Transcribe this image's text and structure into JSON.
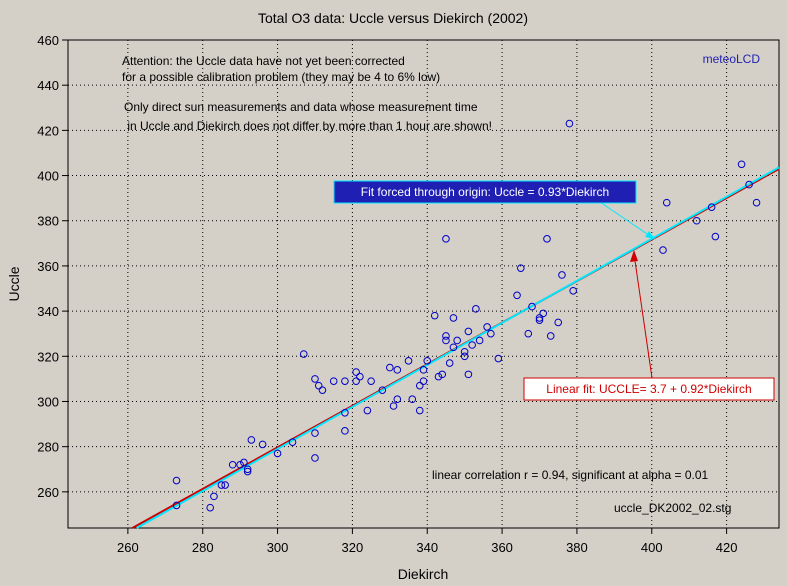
{
  "chart_data": {
    "type": "scatter",
    "title": "Total O3 data: Uccle versus Diekirch (2002)",
    "xlabel": "Diekirch",
    "ylabel": "Uccle",
    "xlim": [
      244,
      434
    ],
    "ylim": [
      244,
      460
    ],
    "xticks": [
      260,
      280,
      300,
      320,
      340,
      360,
      380,
      400,
      420
    ],
    "yticks": [
      260,
      280,
      300,
      320,
      340,
      360,
      380,
      400,
      420,
      440,
      460
    ],
    "grid": true,
    "marker_color": "#0000c8",
    "series": [
      {
        "points": [
          [
            273,
            265
          ],
          [
            273,
            254
          ],
          [
            282,
            253
          ],
          [
            283,
            258
          ],
          [
            285,
            263
          ],
          [
            286,
            263
          ],
          [
            288,
            272
          ],
          [
            290,
            272
          ],
          [
            291,
            273
          ],
          [
            292,
            269
          ],
          [
            292,
            270
          ],
          [
            293,
            283
          ],
          [
            296,
            281
          ],
          [
            300,
            277
          ],
          [
            304,
            282
          ],
          [
            307,
            321
          ],
          [
            310,
            275
          ],
          [
            310,
            286
          ],
          [
            310,
            310
          ],
          [
            311,
            307
          ],
          [
            312,
            305
          ],
          [
            315,
            309
          ],
          [
            318,
            309
          ],
          [
            318,
            295
          ],
          [
            318,
            287
          ],
          [
            321,
            313
          ],
          [
            321,
            309
          ],
          [
            322,
            311
          ],
          [
            324,
            296
          ],
          [
            325,
            309
          ],
          [
            328,
            305
          ],
          [
            330,
            315
          ],
          [
            331,
            298
          ],
          [
            332,
            301
          ],
          [
            332,
            314
          ],
          [
            335,
            318
          ],
          [
            336,
            301
          ],
          [
            338,
            296
          ],
          [
            338,
            307
          ],
          [
            339,
            309
          ],
          [
            339,
            314
          ],
          [
            340,
            318
          ],
          [
            342,
            338
          ],
          [
            343,
            311
          ],
          [
            344,
            312
          ],
          [
            345,
            327
          ],
          [
            345,
            372
          ],
          [
            345,
            329
          ],
          [
            346,
            317
          ],
          [
            347,
            337
          ],
          [
            347,
            324
          ],
          [
            348,
            327
          ],
          [
            350,
            320
          ],
          [
            350,
            322
          ],
          [
            351,
            312
          ],
          [
            351,
            331
          ],
          [
            352,
            325
          ],
          [
            353,
            341
          ],
          [
            354,
            327
          ],
          [
            356,
            333
          ],
          [
            357,
            330
          ],
          [
            359,
            319
          ],
          [
            364,
            347
          ],
          [
            365,
            359
          ],
          [
            367,
            330
          ],
          [
            368,
            342
          ],
          [
            370,
            336
          ],
          [
            370,
            337
          ],
          [
            371,
            339
          ],
          [
            372,
            372
          ],
          [
            373,
            329
          ],
          [
            375,
            335
          ],
          [
            376,
            356
          ],
          [
            378,
            423
          ],
          [
            379,
            349
          ],
          [
            403,
            367
          ],
          [
            404,
            388
          ],
          [
            412,
            380
          ],
          [
            416,
            386
          ],
          [
            417,
            373
          ],
          [
            424,
            405
          ],
          [
            426,
            396
          ],
          [
            428,
            388
          ]
        ]
      }
    ],
    "fits": [
      {
        "label": "Linear fit: UCCLE= 3.7 + 0.92*Diekirch",
        "intercept": 3.7,
        "slope": 0.92,
        "color": "#d00000"
      },
      {
        "label": "Fit forced through origin: Uccle = 0.93*Diekirch",
        "intercept": 0,
        "slope": 0.93,
        "color": "#00e8ff"
      }
    ],
    "annotations": {
      "attention_line1": "Attention: the Uccle data have not yet been corrected",
      "attention_line2": "for a possible calibration problem (they may be 4 to 6% low)",
      "only_line1": "Only direct sun measurements and data whose measurement time",
      "only_line2": " in Uccle and Diekirch does not differ by more than 1 hour are shown!",
      "watermark": "meteoLCD",
      "correlation": "linear correlation r = 0.94, significant at alpha = 0.01",
      "filename": "uccle_DK2002_02.stg"
    }
  }
}
